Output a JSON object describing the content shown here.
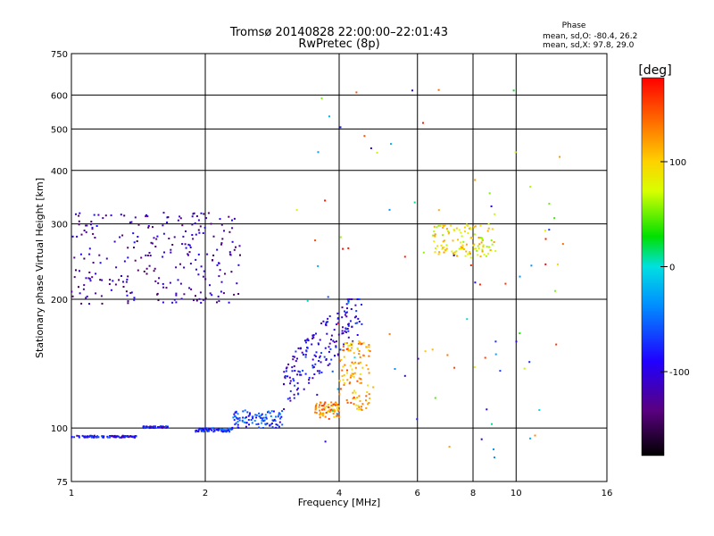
{
  "chart_data": {
    "type": "scatter",
    "title": "Tromsø 20140828 22:00:00–22:01:43",
    "subtitle": "RwPretec (8p)",
    "xlabel": "Frequency [MHz]",
    "ylabel": "Stationary phase Virtual Height [km]",
    "x_scale": "log",
    "y_scale": "log",
    "xlim": [
      1,
      16
    ],
    "ylim": [
      75,
      750
    ],
    "x_ticks": [
      1,
      2,
      4,
      6,
      8,
      10,
      16
    ],
    "y_ticks": [
      75,
      100,
      200,
      300,
      400,
      500,
      600,
      750
    ],
    "grid": true,
    "phase_box": {
      "title": "Phase",
      "line1": "mean, sd,O: -80.4, 26.2",
      "line2": "mean, sd,X:  97.8, 29.0"
    },
    "colorbar": {
      "label": "[deg]",
      "range": [
        -180,
        180
      ],
      "ticks": [
        100,
        0,
        -100
      ],
      "colormap": "rainbow (black/purple low → red high)"
    },
    "series": [
      {
        "color_key": "O-mode",
        "groups": [
          {
            "x": [
              1.0,
              1.4
            ],
            "y": [
              95,
              96
            ],
            "phase": -90
          },
          {
            "x": [
              1.45,
              1.65
            ],
            "y": [
              100,
              101
            ],
            "phase": -85
          },
          {
            "x": [
              1.9,
              2.3
            ],
            "y": [
              98,
              100
            ],
            "phase": -75
          },
          {
            "x": [
              2.3,
              3.0
            ],
            "y": [
              100,
              110
            ],
            "phase": -65
          },
          {
            "x": [
              3.0,
              4.5
            ],
            "y": [
              110,
              200
            ],
            "phase": -95
          },
          {
            "x": [
              1.0,
              2.4
            ],
            "y": [
              195,
              320
            ],
            "phase": -120
          }
        ]
      },
      {
        "color_key": "X-mode",
        "groups": [
          {
            "x": [
              3.5,
              4.0
            ],
            "y": [
              105,
              115
            ],
            "phase": 130
          },
          {
            "x": [
              4.0,
              4.7
            ],
            "y": [
              110,
              160
            ],
            "phase": 120
          },
          {
            "x": [
              6.5,
              9.0
            ],
            "y": [
              250,
              300
            ],
            "phase": 90
          }
        ]
      }
    ]
  }
}
